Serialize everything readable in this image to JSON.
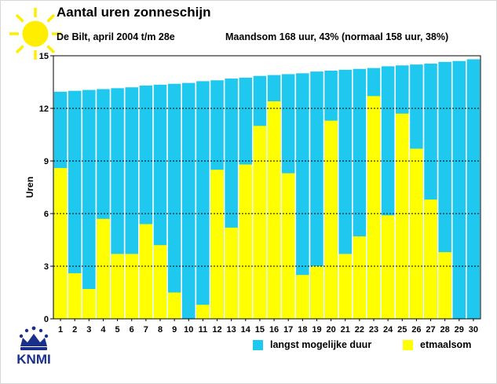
{
  "header": {
    "title": "Aantal uren zonneschijn",
    "subtitle": "De Bilt, april 2004  t/m 28e",
    "summary": "Maandsom 168 uur, 43% (normaal 158 uur, 38%)"
  },
  "logo": {
    "text": "KNMI"
  },
  "colors": {
    "possible": "#1ec8ee",
    "actual": "#ffff00",
    "grid": "#000000"
  },
  "icons": {
    "sun": "sun-icon",
    "logo": "knmi-crown-logo"
  },
  "legend": [
    {
      "label": "langst mogelijke duur",
      "color": "#1ec8ee"
    },
    {
      "label": "etmaalsom",
      "color": "#ffff00"
    }
  ],
  "chart_data": {
    "type": "bar",
    "title": "Aantal uren zonneschijn",
    "xlabel": "",
    "ylabel": "Uren",
    "ylim": [
      0,
      15
    ],
    "yticks": [
      0,
      3,
      6,
      9,
      12,
      15
    ],
    "grid": "horizontal dashed",
    "legend_position": "bottom-right",
    "categories": [
      "1",
      "2",
      "3",
      "4",
      "5",
      "6",
      "7",
      "8",
      "9",
      "10",
      "11",
      "12",
      "13",
      "14",
      "15",
      "16",
      "17",
      "18",
      "19",
      "20",
      "21",
      "22",
      "23",
      "24",
      "25",
      "26",
      "27",
      "28",
      "29",
      "30"
    ],
    "series": [
      {
        "name": "langst mogelijke duur",
        "values": [
          12.95,
          13.0,
          13.05,
          13.1,
          13.15,
          13.2,
          13.3,
          13.35,
          13.4,
          13.45,
          13.55,
          13.6,
          13.7,
          13.75,
          13.85,
          13.9,
          13.95,
          14.0,
          14.1,
          14.15,
          14.2,
          14.25,
          14.3,
          14.4,
          14.45,
          14.5,
          14.55,
          14.65,
          14.7,
          14.8
        ]
      },
      {
        "name": "etmaalsom",
        "values": [
          8.6,
          2.6,
          1.7,
          5.7,
          3.7,
          3.7,
          5.4,
          4.2,
          1.5,
          0.0,
          0.8,
          8.5,
          5.2,
          8.8,
          11.0,
          12.4,
          8.3,
          2.5,
          3.0,
          11.3,
          3.7,
          4.7,
          12.7,
          5.9,
          11.7,
          9.7,
          6.8,
          3.8,
          null,
          null
        ]
      }
    ]
  }
}
